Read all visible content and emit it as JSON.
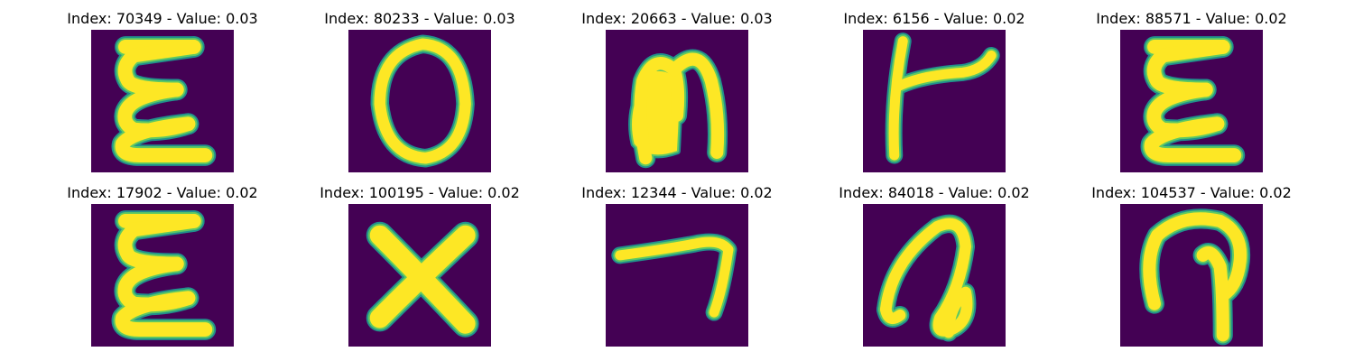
{
  "colors": {
    "background": "#440154",
    "stroke_core": "#fde725",
    "stroke_mid": "#5ec962",
    "stroke_edge": "#21918c"
  },
  "panels": [
    {
      "title": "Index: 70349 - Value: 0.03",
      "glyph": "E"
    },
    {
      "title": "Index: 80233 - Value: 0.03",
      "glyph": "O"
    },
    {
      "title": "Index: 20663 - Value: 0.03",
      "glyph": "n"
    },
    {
      "title": "Index: 6156 - Value: 0.02",
      "glyph": "t"
    },
    {
      "title": "Index: 88571 - Value: 0.02",
      "glyph": "E"
    },
    {
      "title": "Index: 17902 - Value: 0.02",
      "glyph": "E"
    },
    {
      "title": "Index: 100195 - Value: 0.02",
      "glyph": "X"
    },
    {
      "title": "Index: 12344 - Value: 0.02",
      "glyph": "7"
    },
    {
      "title": "Index: 84018 - Value: 0.02",
      "glyph": "a"
    },
    {
      "title": "Index: 104537 - Value: 0.02",
      "glyph": "q"
    }
  ]
}
